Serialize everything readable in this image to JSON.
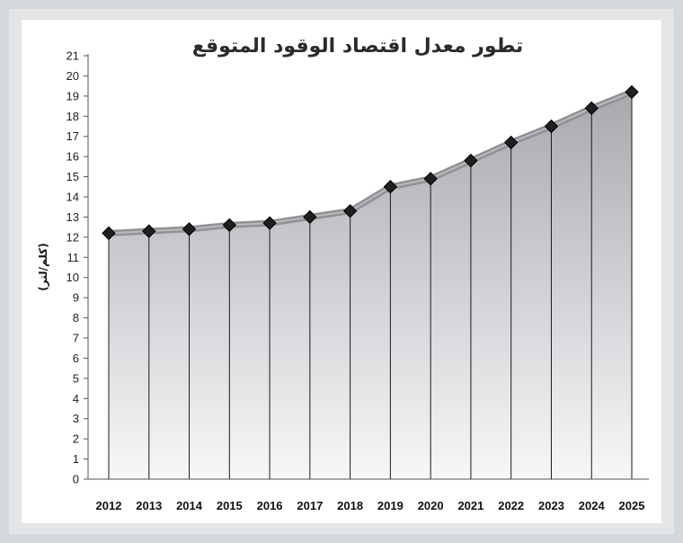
{
  "chart_data": {
    "type": "area",
    "title": "تطور معدل اقتصاد الوقود المتوقع",
    "ylabel": "(كلم/لتر)",
    "xlabel": "",
    "categories": [
      "2012",
      "2013",
      "2014",
      "2015",
      "2016",
      "2017",
      "2018",
      "2019",
      "2020",
      "2021",
      "2022",
      "2023",
      "2024",
      "2025"
    ],
    "values": [
      12.2,
      12.3,
      12.4,
      12.6,
      12.7,
      13.0,
      13.3,
      14.5,
      14.9,
      15.8,
      16.7,
      17.5,
      18.4,
      19.2
    ],
    "ylim": [
      0,
      21
    ],
    "yticks": [
      "0",
      "1",
      "2",
      "3",
      "4",
      "5",
      "6",
      "7",
      "8",
      "9",
      "10",
      "11",
      "12",
      "13",
      "14",
      "15",
      "16",
      "17",
      "18",
      "19",
      "20",
      "21"
    ],
    "grid": false,
    "legend": "none",
    "colors": {
      "area_top": "#a9abae",
      "area_mid": "#dcdde0",
      "area_bottom": "#f6f6f7",
      "ribbon": "#8f9194",
      "marker": "#1f1f1f",
      "frame": "#d6d9dc"
    }
  }
}
